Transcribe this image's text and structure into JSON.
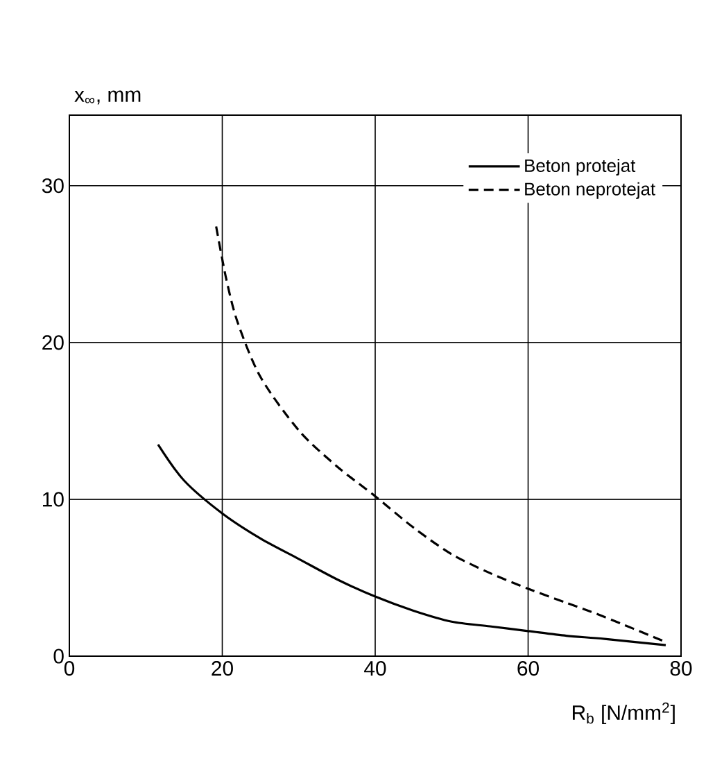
{
  "chart_data": {
    "type": "line",
    "xlabel": "R$_{b}$ [N/mm$^{2}$]",
    "ylabel": "x$_{∞}$, mm",
    "xlim": [
      0,
      80
    ],
    "ylim": [
      0,
      34.5
    ],
    "xticks": [
      0,
      20,
      40,
      60,
      80
    ],
    "yticks": [
      0,
      10,
      20,
      30
    ],
    "grid": true,
    "legend": "top right",
    "series": [
      {
        "name": "Beton protejat",
        "color": "#000000",
        "line_style": "solid",
        "x": [
          11.6,
          15,
          20,
          25,
          30,
          35,
          40,
          45,
          50,
          55,
          60,
          65,
          70,
          78
        ],
        "values": [
          13.5,
          11.2,
          9.1,
          7.5,
          6.2,
          4.9,
          3.8,
          2.9,
          2.2,
          1.9,
          1.6,
          1.3,
          1.1,
          0.7
        ]
      },
      {
        "name": "Beton neprotejat",
        "color": "#000000",
        "line_style": "dashed",
        "x": [
          19.2,
          20.5,
          22,
          25,
          30,
          35,
          40,
          45,
          50,
          55,
          60,
          65,
          70,
          78
        ],
        "values": [
          27.4,
          24.1,
          21.3,
          17.8,
          14.4,
          12.1,
          10.2,
          8.2,
          6.5,
          5.3,
          4.3,
          3.4,
          2.5,
          0.9
        ]
      }
    ]
  }
}
